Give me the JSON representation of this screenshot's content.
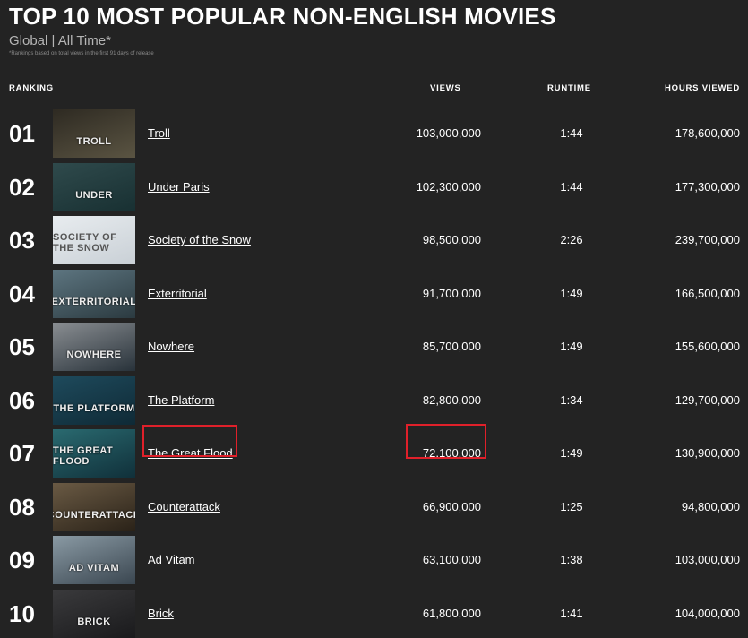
{
  "header": {
    "title": "TOP 10 MOST POPULAR NON-ENGLISH MOVIES",
    "subtitle": "Global | All Time*",
    "note": "*Rankings based on total views in the first 91 days of release"
  },
  "columns": {
    "ranking": "RANKING",
    "views": "VIEWS",
    "runtime": "RUNTIME",
    "hours": "HOURS VIEWED"
  },
  "highlight_color": "#e0202a",
  "rows": [
    {
      "rank": "01",
      "title": "Troll",
      "logo": "TROLL",
      "views": "103,000,000",
      "runtime": "1:44",
      "hours": "178,600,000",
      "thumb": [
        "#2e2a22",
        "#5a5442"
      ]
    },
    {
      "rank": "02",
      "title": "Under Paris",
      "logo": "UNDER",
      "views": "102,300,000",
      "runtime": "1:44",
      "hours": "177,300,000",
      "thumb": [
        "#2f4a4c",
        "#183032"
      ]
    },
    {
      "rank": "03",
      "title": "Society of the Snow",
      "logo": "SOCIETY OF THE SNOW",
      "views": "98,500,000",
      "runtime": "2:26",
      "hours": "239,700,000",
      "thumb": [
        "#e8ecef",
        "#c9d0d6"
      ]
    },
    {
      "rank": "04",
      "title": "Exterritorial",
      "logo": "EXTERRITORIAL",
      "views": "91,700,000",
      "runtime": "1:49",
      "hours": "166,500,000",
      "thumb": [
        "#5d7580",
        "#2b3a40"
      ]
    },
    {
      "rank": "05",
      "title": "Nowhere",
      "logo": "NOWHERE",
      "views": "85,700,000",
      "runtime": "1:49",
      "hours": "155,600,000",
      "thumb": [
        "#8a8e92",
        "#28323a"
      ]
    },
    {
      "rank": "06",
      "title": "The Platform",
      "logo": "THE PLATFORM",
      "views": "82,800,000",
      "runtime": "1:34",
      "hours": "129,700,000",
      "thumb": [
        "#1e4a5c",
        "#0f2a36"
      ]
    },
    {
      "rank": "07",
      "title": "The Great Flood",
      "logo": "THE GREAT FLOOD",
      "views": "72,100,000",
      "runtime": "1:49",
      "hours": "130,900,000",
      "thumb": [
        "#2a6a70",
        "#10303a"
      ],
      "highlighted": true
    },
    {
      "rank": "08",
      "title": "Counterattack",
      "logo": "COUNTERATTACK",
      "views": "66,900,000",
      "runtime": "1:25",
      "hours": "94,800,000",
      "thumb": [
        "#6a5a44",
        "#2a2218"
      ]
    },
    {
      "rank": "09",
      "title": "Ad Vitam",
      "logo": "AD VITAM",
      "views": "63,100,000",
      "runtime": "1:38",
      "hours": "103,000,000",
      "thumb": [
        "#8a9aa4",
        "#3a4650"
      ]
    },
    {
      "rank": "10",
      "title": "Brick",
      "logo": "BRICK",
      "views": "61,800,000",
      "runtime": "1:41",
      "hours": "104,000,000",
      "thumb": [
        "#3a3a3c",
        "#1a1a1c"
      ]
    }
  ]
}
